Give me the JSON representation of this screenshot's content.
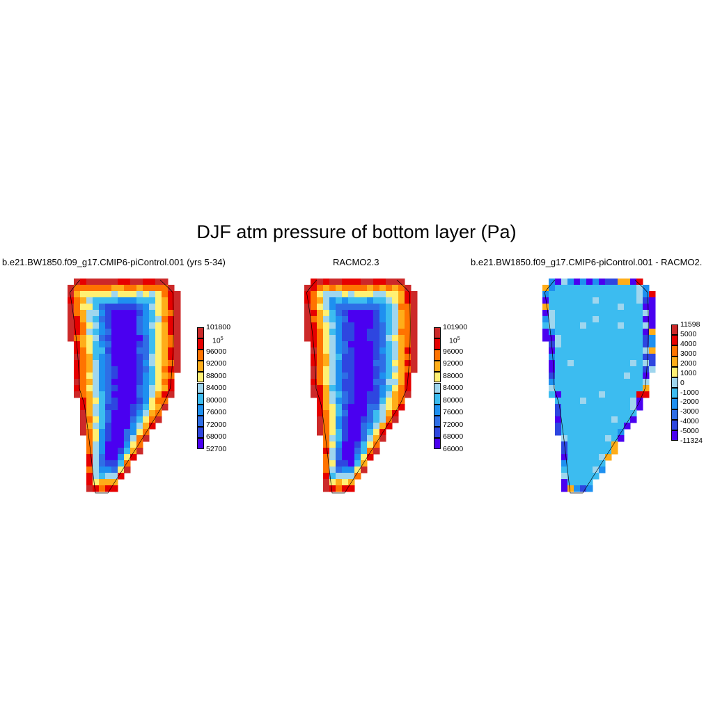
{
  "chart_data": {
    "type": "heatmap",
    "title": "DJF atm pressure of bottom layer (Pa)",
    "panels": [
      {
        "title": "b.e21.BW1850.f09_g17.CMIP6-piControl.001 (yrs 5-34)",
        "colorbar_labels": [
          "101800",
          "10^5",
          "96000",
          "92000",
          "88000",
          "84000",
          "80000",
          "76000",
          "72000",
          "68000",
          "52700"
        ],
        "colors": [
          "#cc2929",
          "#e60000",
          "#ff7300",
          "#ffad19",
          "#fff073",
          "#9fd6ee",
          "#3cbcf0",
          "#1e90f0",
          "#2e6ee6",
          "#2e46e0",
          "#4a00f0"
        ]
      },
      {
        "title": "RACMO2.3",
        "colorbar_labels": [
          "101900",
          "10^5",
          "96000",
          "92000",
          "88000",
          "84000",
          "80000",
          "76000",
          "72000",
          "68000",
          "66000"
        ],
        "colors": [
          "#cc2929",
          "#e60000",
          "#ff7300",
          "#ffad19",
          "#fff073",
          "#9fd6ee",
          "#3cbcf0",
          "#1e90f0",
          "#2e6ee6",
          "#2e46e0",
          "#4a00f0"
        ]
      },
      {
        "title": "b.e21.BW1850.f09_g17.CMIP6-piControl.001 - RACMO2.",
        "colorbar_labels": [
          "11598",
          "5000",
          "4000",
          "3000",
          "2000",
          "1000",
          "0",
          "-1000",
          "-2000",
          "-3000",
          "-4000",
          "-5000",
          "-11324"
        ],
        "colors": [
          "#cc2929",
          "#e60000",
          "#ff7300",
          "#ffad19",
          "#fff073",
          "#9fd6ee",
          "#3cbcf0",
          "#1e90f0",
          "#2e6ee6",
          "#2e46e0",
          "#4a00f0"
        ]
      }
    ]
  }
}
